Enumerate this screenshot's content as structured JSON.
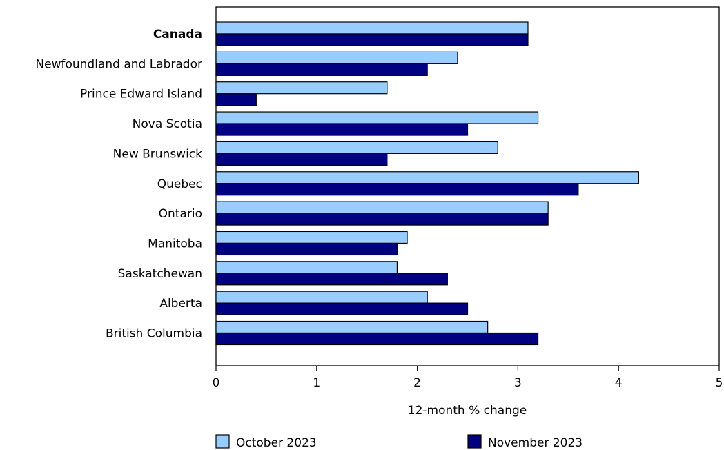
{
  "chart_data": {
    "type": "bar",
    "orientation": "horizontal",
    "categories": [
      "Canada",
      "Newfoundland and Labrador",
      "Prince Edward Island",
      "Nova Scotia",
      "New Brunswick",
      "Quebec",
      "Ontario",
      "Manitoba",
      "Saskatchewan",
      "Alberta",
      "British Columbia"
    ],
    "bold_categories": [
      "Canada"
    ],
    "series": [
      {
        "name": "October 2023",
        "color": "#99ccff",
        "values": [
          3.1,
          2.4,
          1.7,
          3.2,
          2.8,
          4.2,
          3.3,
          1.9,
          1.8,
          2.1,
          2.7
        ]
      },
      {
        "name": "November 2023",
        "color": "#000080",
        "values": [
          3.1,
          2.1,
          0.4,
          2.5,
          1.7,
          3.6,
          3.3,
          1.8,
          2.3,
          2.5,
          3.2
        ]
      }
    ],
    "xlabel": "12-month % change",
    "xlim": [
      0,
      5
    ],
    "xticks": [
      "0",
      "1",
      "2",
      "3",
      "4",
      "5"
    ],
    "grid": false,
    "legend_position": "bottom"
  }
}
